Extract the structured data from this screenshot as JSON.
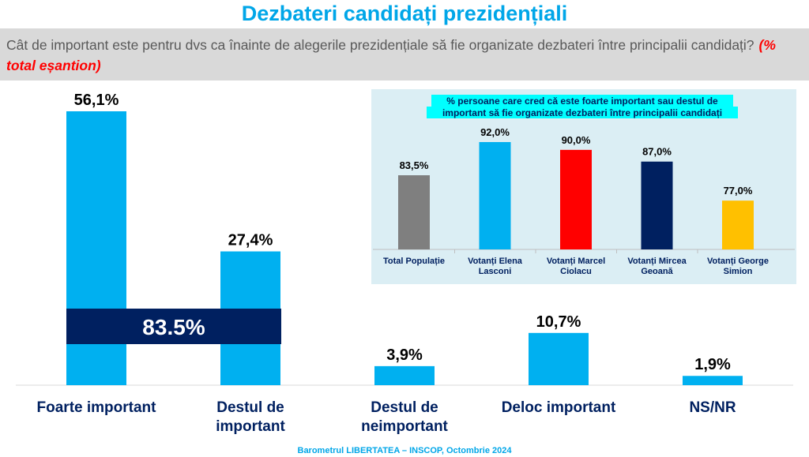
{
  "title": "Dezbateri candidați prezidențiali",
  "question": "Cât de important este pentru dvs ca înainte de alegerile prezidențiale să fie organizate dezbateri între principalii candidați?",
  "sample_note": "(% total eșantion)",
  "footer": "Barometrul LIBERTATEA – INSCOP, Octombrie 2024",
  "chart_data": [
    {
      "type": "bar",
      "categories": [
        "Foarte important",
        "Destul de important",
        "Destul de neimportant",
        "Deloc important",
        "NS/NR"
      ],
      "values": [
        56.1,
        27.4,
        3.9,
        10.7,
        1.9
      ],
      "value_labels": [
        "56,1%",
        "27,4%",
        "3,9%",
        "10,7%",
        "1,9%"
      ],
      "ylim": [
        0,
        56.1
      ],
      "grid": false,
      "bar_color": "#00b0f0",
      "annotation": {
        "text": "83.5%",
        "color": "#002060",
        "spans": [
          "Foarte important",
          "Destul de important"
        ]
      }
    },
    {
      "type": "bar",
      "title": "% persoane care cred că este foarte important sau destul de important să fie organizate dezbateri între principalii candidați",
      "categories": [
        "Total Populație",
        "Votanți Elena Lasconi",
        "Votanți Marcel Ciolacu",
        "Votanți Mircea Geoană",
        "Votanți George Simion"
      ],
      "values": [
        83.5,
        92.0,
        90.0,
        87.0,
        77.0
      ],
      "value_labels": [
        "83,5%",
        "92,0%",
        "90,0%",
        "87,0%",
        "77,0%"
      ],
      "colors": [
        "#7f7f7f",
        "#00b0f0",
        "#ff0000",
        "#002060",
        "#ffc000"
      ],
      "ylim": [
        64.5,
        100
      ],
      "grid": false,
      "background": "#dbeef4",
      "title_highlight": "#00ffff"
    }
  ]
}
